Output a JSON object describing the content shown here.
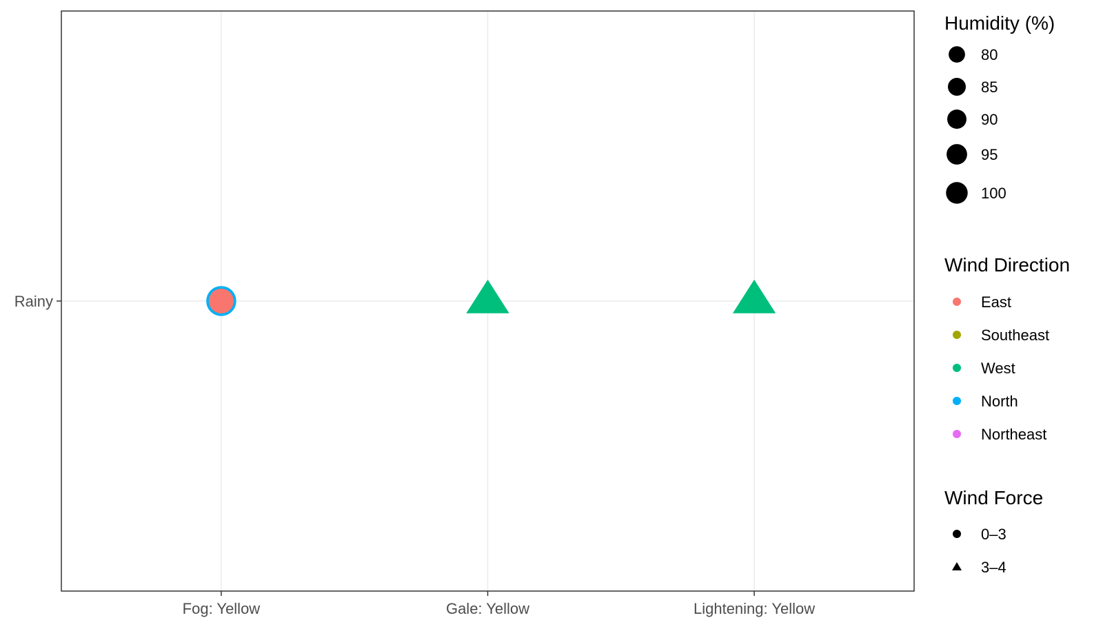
{
  "chart_data": {
    "type": "scatter",
    "title": "",
    "xlabel": "",
    "ylabel": "",
    "x_categories": [
      "Fog: Yellow",
      "Gale: Yellow",
      "Lightening: Yellow"
    ],
    "y_categories": [
      "Rainy"
    ],
    "grid": true,
    "points": [
      {
        "x": "Fog: Yellow",
        "y": "Rainy",
        "wind_direction": "North",
        "wind_force": "0–3",
        "humidity": 90
      },
      {
        "x": "Fog: Yellow",
        "y": "Rainy",
        "wind_direction": "East",
        "wind_force": "0–3",
        "humidity": 80
      },
      {
        "x": "Gale: Yellow",
        "y": "Rainy",
        "wind_direction": "West",
        "wind_force": "3–4",
        "humidity": 95
      },
      {
        "x": "Lightening: Yellow",
        "y": "Rainy",
        "wind_direction": "West",
        "wind_force": "3–4",
        "humidity": 95
      }
    ],
    "legends": {
      "humidity": {
        "title": "Humidity (%)",
        "values": [
          80,
          85,
          90,
          95,
          100
        ],
        "labels": [
          "80",
          "85",
          "90",
          "95",
          "100"
        ]
      },
      "wind_direction": {
        "title": "Wind Direction",
        "items": [
          {
            "label": "East",
            "color": "#F8766D"
          },
          {
            "label": "Southeast",
            "color": "#A3A500"
          },
          {
            "label": "West",
            "color": "#00BF7D"
          },
          {
            "label": "North",
            "color": "#00B0F6"
          },
          {
            "label": "Northeast",
            "color": "#E76BF3"
          }
        ]
      },
      "wind_force": {
        "title": "Wind Force",
        "items": [
          {
            "label": "0–3",
            "shape": "circle"
          },
          {
            "label": "3–4",
            "shape": "triangle"
          }
        ]
      }
    },
    "legend_position": "right"
  }
}
